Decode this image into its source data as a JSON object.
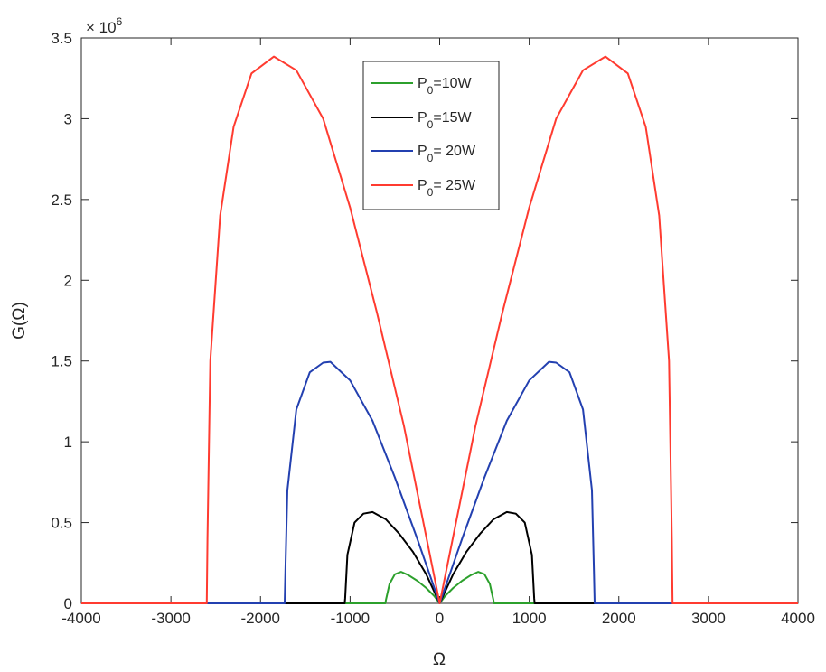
{
  "chart_data": {
    "type": "line",
    "xlabel": "Ω",
    "ylabel": "G(Ω)",
    "xlim": [
      -4000,
      4000
    ],
    "ylim": [
      0,
      3500000
    ],
    "y_exponent_label": "× 10",
    "y_exponent_power": "6",
    "x_ticks": [
      -4000,
      -3000,
      -2000,
      -1000,
      0,
      1000,
      2000,
      3000,
      4000
    ],
    "x_tick_labels": [
      "-4000",
      "-3000",
      "-2000",
      "-1000",
      "0",
      "1000",
      "2000",
      "3000",
      "4000"
    ],
    "y_ticks": [
      0,
      500000,
      1000000,
      1500000,
      2000000,
      2500000,
      3000000,
      3500000
    ],
    "y_tick_labels": [
      "0",
      "0.5",
      "1",
      "1.5",
      "2",
      "2.5",
      "3",
      "3.5"
    ],
    "grid": false,
    "legend_position": "top-center",
    "series": [
      {
        "name_main": "P",
        "name_sub": "0",
        "name_tail": "=10W",
        "color": "#2ca02c",
        "x": [
          -4000,
          -605,
          -600,
          -560,
          -500,
          -430,
          -350,
          -250,
          -150,
          -60,
          0,
          60,
          150,
          250,
          350,
          430,
          500,
          560,
          600,
          605,
          4000
        ],
        "y": [
          0,
          0,
          20000,
          120000,
          180000,
          195000,
          175000,
          140000,
          95000,
          45000,
          0,
          45000,
          95000,
          140000,
          175000,
          195000,
          180000,
          120000,
          20000,
          0,
          0
        ]
      },
      {
        "name_main": "P",
        "name_sub": "0",
        "name_tail": "=15W",
        "color": "#000000",
        "x": [
          -4000,
          -1060,
          -1055,
          -1030,
          -950,
          -850,
          -750,
          -600,
          -450,
          -300,
          -150,
          0,
          150,
          300,
          450,
          600,
          750,
          850,
          950,
          1030,
          1055,
          1060,
          4000
        ],
        "y": [
          0,
          0,
          30000,
          300000,
          500000,
          555000,
          565000,
          520000,
          430000,
          320000,
          180000,
          0,
          180000,
          320000,
          430000,
          520000,
          565000,
          555000,
          500000,
          300000,
          30000,
          0,
          0
        ]
      },
      {
        "name_main": "P",
        "name_sub": "0",
        "name_tail": "= 20W",
        "color": "#2340b0",
        "x": [
          -4000,
          -1730,
          -1722,
          -1700,
          -1600,
          -1450,
          -1300,
          -1220,
          -1000,
          -750,
          -500,
          -250,
          0,
          250,
          500,
          750,
          1000,
          1220,
          1300,
          1450,
          1600,
          1700,
          1722,
          1730,
          4000
        ],
        "y": [
          0,
          0,
          200000,
          700000,
          1200000,
          1430000,
          1490000,
          1495000,
          1380000,
          1130000,
          780000,
          400000,
          0,
          400000,
          780000,
          1130000,
          1380000,
          1495000,
          1490000,
          1430000,
          1200000,
          700000,
          200000,
          0,
          0
        ]
      },
      {
        "name_main": "P",
        "name_sub": "0",
        "name_tail": "= 25W",
        "color": "#ff3b30",
        "x": [
          -4000,
          -2600,
          -2592,
          -2560,
          -2450,
          -2300,
          -2100,
          -1850,
          -1600,
          -1300,
          -1000,
          -700,
          -400,
          0,
          400,
          700,
          1000,
          1300,
          1600,
          1850,
          2100,
          2300,
          2450,
          2560,
          2592,
          2600,
          4000
        ],
        "y": [
          0,
          0,
          400000,
          1500000,
          2400000,
          2950000,
          3280000,
          3385000,
          3300000,
          3000000,
          2450000,
          1800000,
          1100000,
          0,
          1100000,
          1800000,
          2450000,
          3000000,
          3300000,
          3385000,
          3280000,
          2950000,
          2400000,
          1500000,
          400000,
          0,
          0
        ]
      }
    ]
  }
}
